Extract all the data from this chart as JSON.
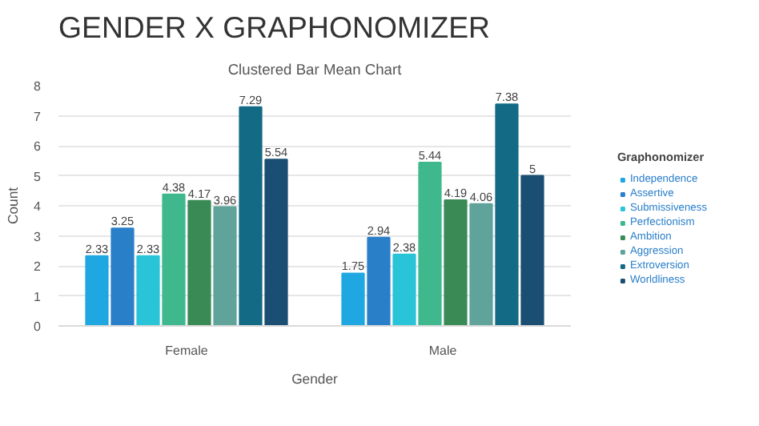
{
  "chart_data": {
    "type": "bar",
    "title": "GENDER X GRAPHONOMIZER",
    "subtitle": "Clustered Bar Mean Chart",
    "xlabel": "Gender",
    "ylabel": "Count",
    "legend_title": "Graphonomizer",
    "categories": [
      "Female",
      "Male"
    ],
    "series": [
      {
        "name": "Independence",
        "color": "#1ea7e0",
        "values": [
          2.33,
          1.75
        ]
      },
      {
        "name": "Assertive",
        "color": "#2a7fc9",
        "values": [
          3.25,
          2.94
        ]
      },
      {
        "name": "Submissiveness",
        "color": "#2ac4d8",
        "values": [
          2.33,
          2.38
        ]
      },
      {
        "name": "Perfectionism",
        "color": "#3fb88e",
        "values": [
          4.38,
          5.44
        ]
      },
      {
        "name": "Ambition",
        "color": "#3a8a55",
        "values": [
          4.17,
          4.19
        ]
      },
      {
        "name": "Aggression",
        "color": "#5fa39a",
        "values": [
          3.96,
          4.06
        ]
      },
      {
        "name": "Extroversion",
        "color": "#136a85",
        "values": [
          7.29,
          7.38
        ]
      },
      {
        "name": "Worldliness",
        "color": "#1b4e73",
        "values": [
          5.54,
          5
        ]
      }
    ],
    "ylim": [
      0,
      8
    ],
    "yticks": [
      0,
      1,
      2,
      3,
      4,
      5,
      6,
      7,
      8
    ],
    "grid": "y",
    "legend": "right",
    "data_labels": true
  }
}
